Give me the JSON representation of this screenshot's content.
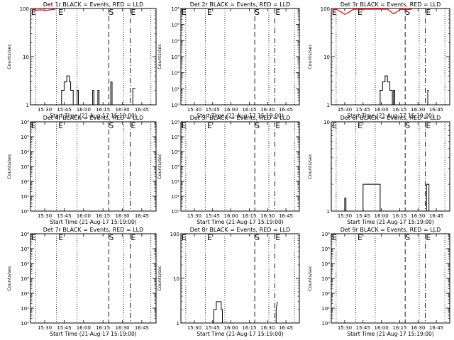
{
  "figure": {
    "xtick_labels": [
      "15:30",
      "15:45",
      "16:00",
      "16:15",
      "16:30",
      "16:45"
    ],
    "xlabel": "Start Time (21-Aug-17 15:19:00)",
    "ylabel": "Counts/sec",
    "colors": {
      "events": "#000000",
      "lld": "#ff0000",
      "frame": "#000000",
      "background": "#ffffff"
    }
  },
  "chart_data": [
    {
      "type": "line",
      "title": "Det 1r BLACK = Events, RED = LLD",
      "ylog": true,
      "ylim": [
        1,
        100
      ],
      "ytick_labels": [
        "1",
        "10",
        "100"
      ],
      "xlim_minutes_after_start": [
        0,
        97
      ],
      "markers": [
        {
          "t": 0.5,
          "label": "E"
        },
        {
          "t": 21.5,
          "label": "E"
        },
        {
          "t": 60.5,
          "label": "S"
        },
        {
          "t": 77.5,
          "label": "E"
        }
      ],
      "dotted_t": [
        4,
        20,
        36,
        72,
        93
      ],
      "dashdot_t": [
        77
      ],
      "events": [
        [
          22,
          1
        ],
        [
          24,
          1
        ],
        [
          24,
          2
        ],
        [
          26,
          2
        ],
        [
          26,
          3
        ],
        [
          28,
          3
        ],
        [
          28,
          4
        ],
        [
          30,
          4
        ],
        [
          30,
          3
        ],
        [
          31,
          3
        ],
        [
          31,
          2
        ],
        [
          33,
          2
        ],
        [
          33,
          1
        ],
        [
          36,
          1
        ],
        [
          36,
          2
        ],
        [
          37,
          2
        ],
        [
          37,
          1
        ],
        [
          48,
          1
        ],
        [
          48,
          2
        ],
        [
          49,
          2
        ],
        [
          49,
          1
        ],
        [
          52,
          1
        ],
        [
          52,
          2
        ],
        [
          53,
          2
        ],
        [
          53,
          1
        ],
        [
          62,
          1
        ],
        [
          62,
          3
        ],
        [
          63,
          3
        ],
        [
          63,
          1
        ],
        [
          79,
          1
        ],
        [
          79,
          2.2
        ],
        [
          81,
          2.2
        ]
      ],
      "lld": [
        [
          1,
          98
        ],
        [
          4,
          95
        ],
        [
          8,
          97
        ],
        [
          12,
          94
        ],
        [
          16,
          98
        ],
        [
          19,
          100
        ]
      ]
    },
    {
      "type": "line",
      "title": "Det 2r BLACK = Events, RED = LLD",
      "ylog": true,
      "ylim": [
        1,
        1000000
      ],
      "ytick_labels": [
        "10⁰",
        "10¹",
        "10²",
        "10³",
        "10⁴",
        "10⁵",
        "10⁶"
      ],
      "xlim_minutes_after_start": [
        0,
        97
      ],
      "markers": [
        {
          "t": 0.5,
          "label": "E"
        },
        {
          "t": 21.5,
          "label": "E"
        },
        {
          "t": 60.5,
          "label": "S"
        },
        {
          "t": 77.5,
          "label": "E"
        }
      ],
      "dotted_t": [
        4,
        20,
        36,
        72,
        93
      ],
      "dashdot_t": [
        77
      ],
      "events": [],
      "lld": []
    },
    {
      "type": "line",
      "title": "Det 3r BLACK = Events, RED = LLD",
      "ylog": true,
      "ylim": [
        1,
        100
      ],
      "ytick_labels": [
        "1",
        "10",
        "100"
      ],
      "xlim_minutes_after_start": [
        0,
        97
      ],
      "markers": [
        {
          "t": 0.5,
          "label": "E"
        },
        {
          "t": 21.5,
          "label": "E"
        },
        {
          "t": 60.5,
          "label": "S"
        },
        {
          "t": 77.5,
          "label": "E"
        }
      ],
      "dotted_t": [
        4,
        20,
        36,
        72,
        93
      ],
      "dashdot_t": [
        77
      ],
      "events": [
        [
          40,
          1
        ],
        [
          40,
          2
        ],
        [
          42,
          2
        ],
        [
          42,
          3
        ],
        [
          44,
          3
        ],
        [
          44,
          4
        ],
        [
          46,
          4
        ],
        [
          46,
          3
        ],
        [
          48,
          3
        ],
        [
          48,
          2
        ],
        [
          50,
          2
        ],
        [
          50,
          1
        ],
        [
          51,
          1
        ],
        [
          51,
          2
        ],
        [
          52,
          2
        ],
        [
          52,
          1
        ],
        [
          79,
          1
        ],
        [
          79,
          2
        ],
        [
          80,
          2
        ]
      ],
      "lld": [
        [
          1,
          95
        ],
        [
          4,
          100
        ],
        [
          8,
          88
        ],
        [
          11,
          78
        ],
        [
          14,
          85
        ],
        [
          17,
          96
        ],
        [
          19,
          100
        ],
        [
          46,
          100
        ],
        [
          48,
          92
        ],
        [
          51,
          80
        ],
        [
          54,
          90
        ],
        [
          57,
          100
        ],
        [
          61,
          97
        ],
        [
          66,
          100
        ]
      ]
    },
    {
      "type": "line",
      "title": "Det 4r BLACK = Events, RED = LLD",
      "ylog": true,
      "ylim": [
        1,
        1000000
      ],
      "ytick_labels": [
        "10⁰",
        "10¹",
        "10²",
        "10³",
        "10⁴",
        "10⁵",
        "10⁶"
      ],
      "xlim_minutes_after_start": [
        0,
        97
      ],
      "markers": [
        {
          "t": 0.5,
          "label": "E"
        },
        {
          "t": 21.5,
          "label": "E"
        },
        {
          "t": 60.5,
          "label": "S"
        },
        {
          "t": 77.5,
          "label": "E"
        }
      ],
      "dotted_t": [
        4,
        20,
        36,
        72,
        93
      ],
      "dashdot_t": [
        77
      ],
      "events": [],
      "lld": []
    },
    {
      "type": "line",
      "title": "Det 5r BLACK = Events, RED = LLD",
      "ylog": true,
      "ylim": [
        1,
        1000000
      ],
      "ytick_labels": [
        "10⁰",
        "10¹",
        "10²",
        "10³",
        "10⁴",
        "10⁵",
        "10⁶"
      ],
      "xlim_minutes_after_start": [
        0,
        97
      ],
      "markers": [
        {
          "t": 0.5,
          "label": "E"
        },
        {
          "t": 21.5,
          "label": "E"
        },
        {
          "t": 60.5,
          "label": "S"
        },
        {
          "t": 77.5,
          "label": "E"
        }
      ],
      "dotted_t": [
        4,
        20,
        36,
        72,
        93
      ],
      "dashdot_t": [
        77
      ],
      "events": [],
      "lld": []
    },
    {
      "type": "line",
      "title": "Det 6r BLACK = Events, RED = LLD",
      "ylog": true,
      "ylim": [
        1,
        10
      ],
      "ytick_labels": [
        "1",
        "10"
      ],
      "xlim_minutes_after_start": [
        0,
        97
      ],
      "markers": [
        {
          "t": 0.5,
          "label": "E"
        },
        {
          "t": 21.5,
          "label": "E"
        },
        {
          "t": 60.5,
          "label": "S"
        },
        {
          "t": 77.5,
          "label": "E"
        }
      ],
      "dotted_t": [
        4,
        20,
        36,
        72,
        93
      ],
      "dashdot_t": [
        77
      ],
      "events": [
        [
          11,
          1
        ],
        [
          11,
          1.4
        ],
        [
          12,
          1.4
        ],
        [
          12,
          1
        ],
        [
          26,
          1
        ],
        [
          26,
          2
        ],
        [
          40,
          2
        ],
        [
          40,
          1
        ],
        [
          78,
          1
        ],
        [
          78,
          2
        ],
        [
          80,
          2
        ],
        [
          80,
          1
        ]
      ],
      "lld": []
    },
    {
      "type": "line",
      "title": "Det 7r BLACK = Events, RED = LLD",
      "ylog": true,
      "ylim": [
        1,
        1000000
      ],
      "ytick_labels": [
        "10⁰",
        "10¹",
        "10²",
        "10³",
        "10⁴",
        "10⁵",
        "10⁶"
      ],
      "xlim_minutes_after_start": [
        0,
        97
      ],
      "markers": [
        {
          "t": 0.5,
          "label": "E"
        },
        {
          "t": 21.5,
          "label": "E"
        },
        {
          "t": 60.5,
          "label": "S"
        },
        {
          "t": 77.5,
          "label": "E"
        }
      ],
      "dotted_t": [
        4,
        20,
        36,
        72,
        93
      ],
      "dashdot_t": [
        77
      ],
      "events": [],
      "lld": []
    },
    {
      "type": "line",
      "title": "Det 8r BLACK = Events, RED = LLD",
      "ylog": true,
      "ylim": [
        1,
        100
      ],
      "ytick_labels": [
        "1",
        "10",
        "100"
      ],
      "xlim_minutes_after_start": [
        0,
        97
      ],
      "markers": [
        {
          "t": 0.5,
          "label": "E"
        },
        {
          "t": 21.5,
          "label": "E"
        },
        {
          "t": 60.5,
          "label": "S"
        },
        {
          "t": 77.5,
          "label": "E"
        }
      ],
      "dotted_t": [
        4,
        20,
        36,
        72,
        93
      ],
      "dashdot_t": [
        77
      ],
      "events": [
        [
          27,
          1
        ],
        [
          27,
          2
        ],
        [
          29,
          2
        ],
        [
          29,
          3
        ],
        [
          33,
          3
        ],
        [
          33,
          2
        ],
        [
          34,
          2
        ],
        [
          34,
          1
        ],
        [
          78,
          1
        ],
        [
          78,
          2
        ],
        [
          79,
          3
        ]
      ],
      "lld": []
    },
    {
      "type": "line",
      "title": "Det 9r BLACK = Events, RED = LLD",
      "ylog": true,
      "ylim": [
        1,
        1000000
      ],
      "ytick_labels": [
        "10⁰",
        "10¹",
        "10²",
        "10³",
        "10⁴",
        "10⁵",
        "10⁶"
      ],
      "xlim_minutes_after_start": [
        0,
        97
      ],
      "markers": [
        {
          "t": 0.5,
          "label": "E"
        },
        {
          "t": 21.5,
          "label": "E"
        },
        {
          "t": 60.5,
          "label": "S"
        },
        {
          "t": 77.5,
          "label": "E"
        }
      ],
      "dotted_t": [
        4,
        20,
        36,
        72,
        93
      ],
      "dashdot_t": [
        77
      ],
      "events": [],
      "lld": []
    }
  ]
}
